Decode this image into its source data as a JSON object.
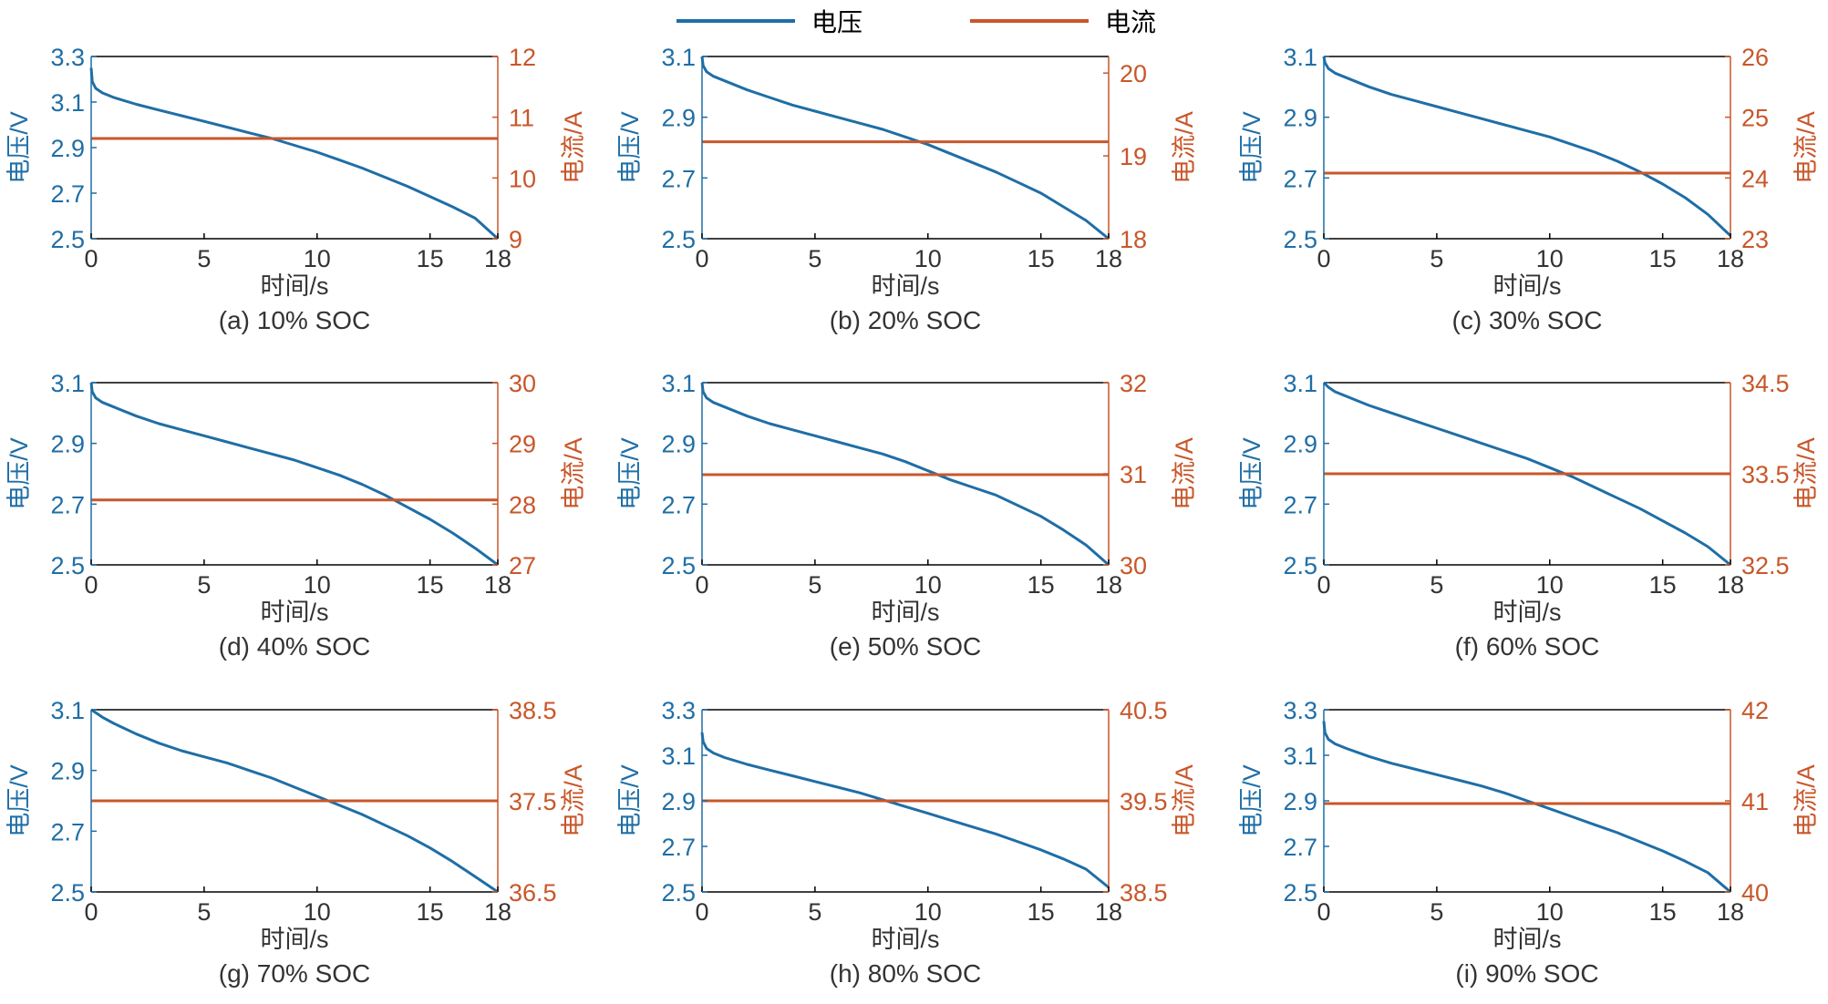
{
  "colors": {
    "voltage": "#1f6ea6",
    "current": "#c8572a",
    "axis": "#000000",
    "text": "#333333"
  },
  "legend": {
    "voltage_label": "电压",
    "current_label": "电流"
  },
  "chart_data": [
    {
      "type": "line",
      "caption": "(a) 10% SOC",
      "xlabel": "时间/s",
      "ylabel_left": "电压/V",
      "ylabel_right": "电流/A",
      "xlim": [
        0,
        18
      ],
      "xticks": [
        "0",
        "5",
        "10",
        "15",
        "18"
      ],
      "ylim_left": [
        2.5,
        3.3
      ],
      "yticks_left": [
        "2.5",
        "2.7",
        "2.9",
        "3.1",
        "3.3"
      ],
      "ylim_right": [
        9,
        12
      ],
      "yticks_right": [
        "9",
        "10",
        "11",
        "12"
      ],
      "series": [
        {
          "name": "电压",
          "axis": "left",
          "x": [
            0,
            0.05,
            0.2,
            0.5,
            1,
            2,
            3,
            4,
            5,
            6,
            7,
            8,
            9,
            10,
            11,
            12,
            13,
            14,
            15,
            16,
            17,
            18
          ],
          "y": [
            3.25,
            3.19,
            3.16,
            3.14,
            3.12,
            3.09,
            3.065,
            3.04,
            3.015,
            2.99,
            2.965,
            2.94,
            2.91,
            2.88,
            2.845,
            2.81,
            2.77,
            2.73,
            2.685,
            2.64,
            2.59,
            2.5
          ]
        },
        {
          "name": "电流",
          "axis": "right",
          "x": [
            0,
            18
          ],
          "y": [
            10.65,
            10.65
          ]
        }
      ]
    },
    {
      "type": "line",
      "caption": "(b) 20% SOC",
      "xlabel": "时间/s",
      "ylabel_left": "电压/V",
      "ylabel_right": "电流/A",
      "xlim": [
        0,
        18
      ],
      "xticks": [
        "0",
        "5",
        "10",
        "15",
        "18"
      ],
      "ylim_left": [
        2.5,
        3.1
      ],
      "yticks_left": [
        "2.5",
        "2.7",
        "2.9",
        "3.1"
      ],
      "ylim_right": [
        18,
        20.2
      ],
      "yticks_right": [
        "18",
        "19",
        "20"
      ],
      "series": [
        {
          "name": "电压",
          "axis": "left",
          "x": [
            0,
            0.05,
            0.2,
            0.5,
            1,
            2,
            3,
            4,
            5,
            6,
            7,
            8,
            9,
            10,
            11,
            12,
            13,
            14,
            15,
            16,
            17,
            18
          ],
          "y": [
            3.1,
            3.07,
            3.05,
            3.035,
            3.02,
            2.99,
            2.965,
            2.94,
            2.92,
            2.9,
            2.88,
            2.86,
            2.835,
            2.81,
            2.78,
            2.75,
            2.72,
            2.685,
            2.65,
            2.605,
            2.56,
            2.5
          ]
        },
        {
          "name": "电流",
          "axis": "right",
          "x": [
            0,
            18
          ],
          "y": [
            19.17,
            19.17
          ]
        }
      ]
    },
    {
      "type": "line",
      "caption": "(c) 30% SOC",
      "xlabel": "时间/s",
      "ylabel_left": "电压/V",
      "ylabel_right": "电流/A",
      "xlim": [
        0,
        18
      ],
      "xticks": [
        "0",
        "5",
        "10",
        "15",
        "18"
      ],
      "ylim_left": [
        2.5,
        3.1
      ],
      "yticks_left": [
        "2.5",
        "2.7",
        "2.9",
        "3.1"
      ],
      "ylim_right": [
        23,
        26
      ],
      "yticks_right": [
        "23",
        "24",
        "25",
        "26"
      ],
      "series": [
        {
          "name": "电压",
          "axis": "left",
          "x": [
            0,
            0.05,
            0.2,
            0.5,
            1,
            2,
            3,
            4,
            5,
            6,
            7,
            8,
            9,
            10,
            11,
            12,
            13,
            14,
            15,
            16,
            17,
            18
          ],
          "y": [
            3.1,
            3.08,
            3.06,
            3.045,
            3.03,
            3.0,
            2.975,
            2.955,
            2.935,
            2.915,
            2.895,
            2.875,
            2.855,
            2.835,
            2.81,
            2.785,
            2.755,
            2.72,
            2.68,
            2.635,
            2.58,
            2.51
          ]
        },
        {
          "name": "电流",
          "axis": "right",
          "x": [
            0,
            18
          ],
          "y": [
            24.08,
            24.08
          ]
        }
      ]
    },
    {
      "type": "line",
      "caption": "(d) 40% SOC",
      "xlabel": "时间/s",
      "ylabel_left": "电压/V",
      "ylabel_right": "电流/A",
      "xlim": [
        0,
        18
      ],
      "xticks": [
        "0",
        "5",
        "10",
        "15",
        "18"
      ],
      "ylim_left": [
        2.5,
        3.1
      ],
      "yticks_left": [
        "2.5",
        "2.7",
        "2.9",
        "3.1"
      ],
      "ylim_right": [
        27,
        30
      ],
      "yticks_right": [
        "27",
        "28",
        "29",
        "30"
      ],
      "series": [
        {
          "name": "电压",
          "axis": "left",
          "x": [
            0,
            0.05,
            0.2,
            0.5,
            1,
            2,
            3,
            4,
            5,
            6,
            7,
            8,
            9,
            10,
            11,
            12,
            13,
            14,
            15,
            16,
            17,
            18
          ],
          "y": [
            3.1,
            3.07,
            3.05,
            3.035,
            3.02,
            2.99,
            2.965,
            2.945,
            2.925,
            2.905,
            2.885,
            2.865,
            2.845,
            2.82,
            2.795,
            2.765,
            2.73,
            2.69,
            2.65,
            2.605,
            2.555,
            2.5
          ]
        },
        {
          "name": "电流",
          "axis": "right",
          "x": [
            0,
            18
          ],
          "y": [
            28.07,
            28.07
          ]
        }
      ]
    },
    {
      "type": "line",
      "caption": "(e) 50% SOC",
      "xlabel": "时间/s",
      "ylabel_left": "电压/V",
      "ylabel_right": "电流/A",
      "xlim": [
        0,
        18
      ],
      "xticks": [
        "0",
        "5",
        "10",
        "15",
        "18"
      ],
      "ylim_left": [
        2.5,
        3.1
      ],
      "yticks_left": [
        "2.5",
        "2.7",
        "2.9",
        "3.1"
      ],
      "ylim_right": [
        30,
        32
      ],
      "yticks_right": [
        "30",
        "31",
        "32"
      ],
      "series": [
        {
          "name": "电压",
          "axis": "left",
          "x": [
            0,
            0.05,
            0.2,
            0.5,
            1,
            2,
            3,
            4,
            5,
            6,
            7,
            8,
            9,
            10,
            11,
            12,
            13,
            14,
            15,
            16,
            17,
            18
          ],
          "y": [
            3.1,
            3.07,
            3.05,
            3.035,
            3.02,
            2.99,
            2.965,
            2.945,
            2.925,
            2.905,
            2.885,
            2.865,
            2.84,
            2.81,
            2.78,
            2.755,
            2.73,
            2.695,
            2.66,
            2.615,
            2.565,
            2.5
          ]
        },
        {
          "name": "电流",
          "axis": "right",
          "x": [
            0,
            18
          ],
          "y": [
            30.99,
            30.99
          ]
        }
      ]
    },
    {
      "type": "line",
      "caption": "(f) 60% SOC",
      "xlabel": "时间/s",
      "ylabel_left": "电压/V",
      "ylabel_right": "电流/A",
      "xlim": [
        0,
        18
      ],
      "xticks": [
        "0",
        "5",
        "10",
        "15",
        "18"
      ],
      "ylim_left": [
        2.5,
        3.1
      ],
      "yticks_left": [
        "2.5",
        "2.7",
        "2.9",
        "3.1"
      ],
      "ylim_right": [
        32.5,
        34.5
      ],
      "yticks_right": [
        "32.5",
        "33.5",
        "34.5"
      ],
      "series": [
        {
          "name": "电压",
          "axis": "left",
          "x": [
            0,
            0.2,
            0.5,
            1,
            2,
            3,
            4,
            5,
            6,
            7,
            8,
            9,
            10,
            11,
            12,
            13,
            14,
            15,
            16,
            17,
            18
          ],
          "y": [
            3.1,
            3.085,
            3.07,
            3.055,
            3.025,
            3.0,
            2.975,
            2.95,
            2.925,
            2.9,
            2.875,
            2.85,
            2.82,
            2.79,
            2.755,
            2.72,
            2.685,
            2.645,
            2.605,
            2.56,
            2.5
          ]
        },
        {
          "name": "电流",
          "axis": "right",
          "x": [
            0,
            18
          ],
          "y": [
            33.5,
            33.5
          ]
        }
      ]
    },
    {
      "type": "line",
      "caption": "(g) 70% SOC",
      "xlabel": "时间/s",
      "ylabel_left": "电压/V",
      "ylabel_right": "电流/A",
      "xlim": [
        0,
        18
      ],
      "xticks": [
        "0",
        "5",
        "10",
        "15",
        "18"
      ],
      "ylim_left": [
        2.5,
        3.1
      ],
      "yticks_left": [
        "2.5",
        "2.7",
        "2.9",
        "3.1"
      ],
      "ylim_right": [
        36.5,
        38.5
      ],
      "yticks_right": [
        "36.5",
        "37.5",
        "38.5"
      ],
      "series": [
        {
          "name": "电压",
          "axis": "left",
          "x": [
            0,
            0.2,
            0.5,
            1,
            2,
            3,
            4,
            5,
            6,
            7,
            8,
            9,
            10,
            11,
            12,
            13,
            14,
            15,
            16,
            17,
            18
          ],
          "y": [
            3.1,
            3.09,
            3.075,
            3.055,
            3.02,
            2.99,
            2.965,
            2.945,
            2.925,
            2.9,
            2.875,
            2.845,
            2.815,
            2.785,
            2.755,
            2.72,
            2.685,
            2.645,
            2.6,
            2.55,
            2.5
          ]
        },
        {
          "name": "电流",
          "axis": "right",
          "x": [
            0,
            18
          ],
          "y": [
            37.5,
            37.5
          ]
        }
      ]
    },
    {
      "type": "line",
      "caption": "(h) 80% SOC",
      "xlabel": "时间/s",
      "ylabel_left": "电压/V",
      "ylabel_right": "电流/A",
      "xlim": [
        0,
        18
      ],
      "xticks": [
        "0",
        "5",
        "10",
        "15",
        "18"
      ],
      "ylim_left": [
        2.5,
        3.3
      ],
      "yticks_left": [
        "2.5",
        "2.7",
        "2.9",
        "3.1",
        "3.3"
      ],
      "ylim_right": [
        38.5,
        40.5
      ],
      "yticks_right": [
        "38.5",
        "39.5",
        "40.5"
      ],
      "series": [
        {
          "name": "电压",
          "axis": "left",
          "x": [
            0,
            0.05,
            0.2,
            0.5,
            1,
            2,
            3,
            4,
            5,
            6,
            7,
            8,
            9,
            10,
            11,
            12,
            13,
            14,
            15,
            16,
            17,
            18
          ],
          "y": [
            3.2,
            3.16,
            3.13,
            3.11,
            3.09,
            3.06,
            3.035,
            3.01,
            2.985,
            2.96,
            2.935,
            2.905,
            2.875,
            2.845,
            2.815,
            2.785,
            2.755,
            2.72,
            2.685,
            2.645,
            2.6,
            2.52
          ]
        },
        {
          "name": "电流",
          "axis": "right",
          "x": [
            0,
            18
          ],
          "y": [
            39.5,
            39.5
          ]
        }
      ]
    },
    {
      "type": "line",
      "caption": "(i) 90% SOC",
      "xlabel": "时间/s",
      "ylabel_left": "电压/V",
      "ylabel_right": "电流/A",
      "xlim": [
        0,
        18
      ],
      "xticks": [
        "0",
        "5",
        "10",
        "15",
        "18"
      ],
      "ylim_left": [
        2.5,
        3.3
      ],
      "yticks_left": [
        "2.5",
        "2.7",
        "2.9",
        "3.1",
        "3.3"
      ],
      "ylim_right": [
        40,
        42
      ],
      "yticks_right": [
        "40",
        "41",
        "42"
      ],
      "series": [
        {
          "name": "电压",
          "axis": "left",
          "x": [
            0,
            0.05,
            0.2,
            0.5,
            1,
            2,
            3,
            4,
            5,
            6,
            7,
            8,
            9,
            10,
            11,
            12,
            13,
            14,
            15,
            16,
            17,
            18
          ],
          "y": [
            3.25,
            3.2,
            3.17,
            3.15,
            3.13,
            3.095,
            3.065,
            3.04,
            3.015,
            2.99,
            2.965,
            2.935,
            2.9,
            2.865,
            2.83,
            2.795,
            2.76,
            2.72,
            2.68,
            2.635,
            2.585,
            2.5
          ]
        },
        {
          "name": "电流",
          "axis": "right",
          "x": [
            0,
            18
          ],
          "y": [
            40.97,
            40.97
          ]
        }
      ]
    }
  ]
}
